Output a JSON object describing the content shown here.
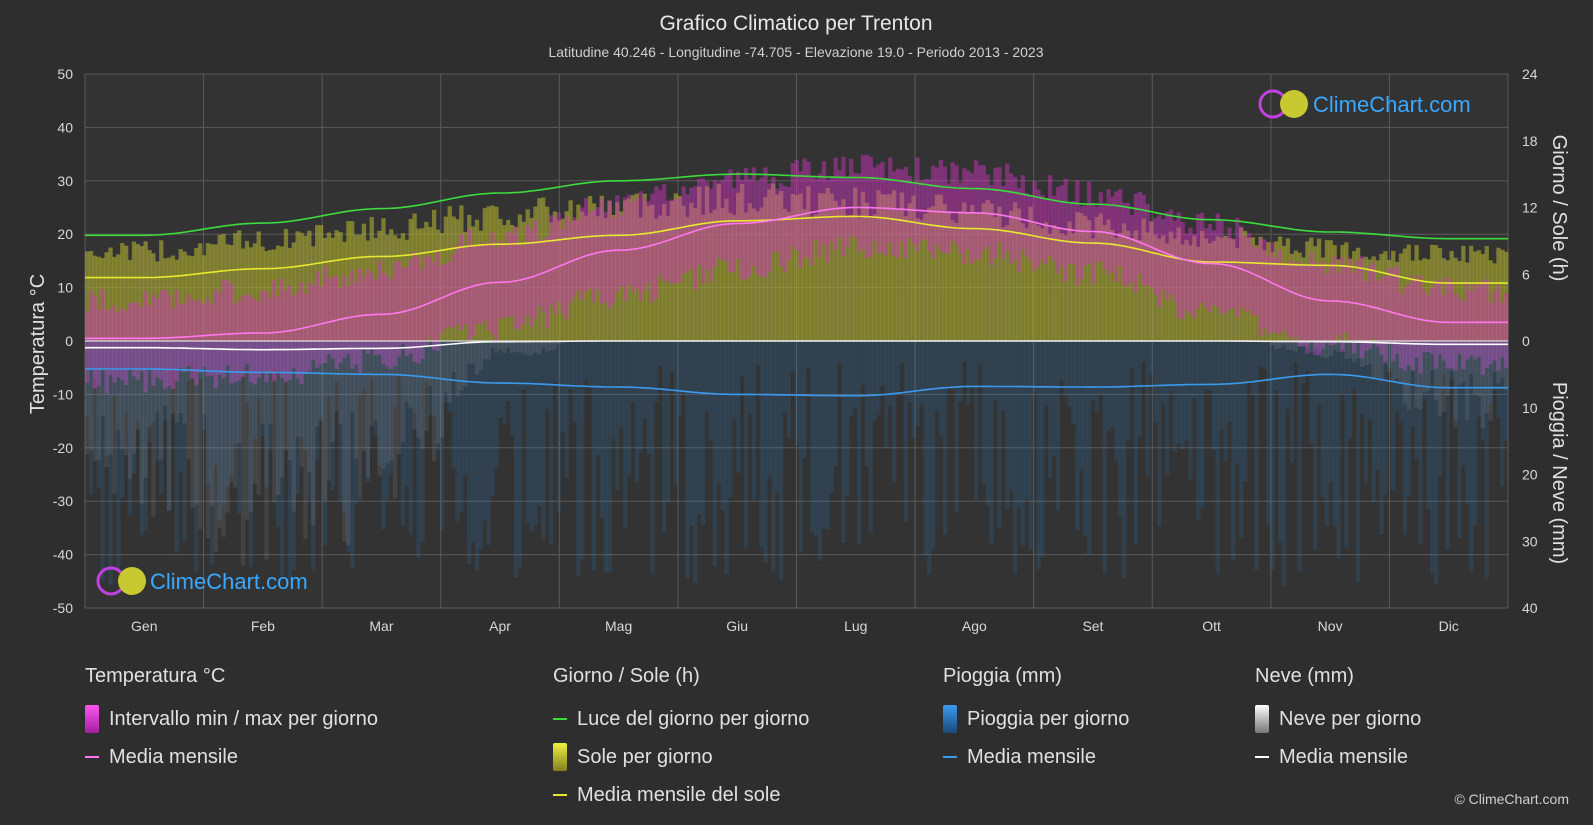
{
  "chart_data": {
    "type": "area",
    "title": "Grafico Climatico per Trenton",
    "subtitle": "Latitudine 40.246 - Longitudine -74.705 - Elevazione 19.0 - Periodo 2013 - 2023",
    "categories": [
      "Gen",
      "Feb",
      "Mar",
      "Apr",
      "Mag",
      "Giu",
      "Lug",
      "Ago",
      "Set",
      "Ott",
      "Nov",
      "Dic"
    ],
    "axes": {
      "left": {
        "label": "Temperatura °C",
        "range": [
          -50,
          50
        ],
        "ticks": [
          50,
          40,
          30,
          20,
          10,
          0,
          -10,
          -20,
          -30,
          -40,
          -50
        ]
      },
      "right_top": {
        "label": "Giorno / Sole (h)",
        "range": [
          0,
          24
        ],
        "ticks": [
          24,
          18,
          12,
          6,
          0
        ]
      },
      "right_bottom": {
        "label": "Pioggia / Neve (mm)",
        "range": [
          0,
          40
        ],
        "ticks": [
          0,
          10,
          20,
          30,
          40
        ]
      }
    },
    "series": [
      {
        "name": "Luce del giorno per giorno",
        "unit": "h",
        "values": [
          9.5,
          10.6,
          11.9,
          13.3,
          14.4,
          15.0,
          14.7,
          13.7,
          12.3,
          10.9,
          9.8,
          9.2
        ]
      },
      {
        "name": "Media mensile del sole",
        "unit": "h",
        "values": [
          5.7,
          6.5,
          7.6,
          8.7,
          9.5,
          10.8,
          11.2,
          10.1,
          8.8,
          7.1,
          6.8,
          5.2
        ]
      },
      {
        "name": "Media mensile",
        "group": "Temperatura °C",
        "unit": "°C",
        "values": [
          0.5,
          1.5,
          5.0,
          11.0,
          17.0,
          22.0,
          25.0,
          24.0,
          20.5,
          14.5,
          7.5,
          3.5
        ]
      },
      {
        "name": "Media mensile",
        "group": "Pioggia (mm)",
        "unit": "mm",
        "values": [
          4.2,
          4.7,
          5.0,
          6.3,
          6.9,
          8.0,
          8.2,
          6.8,
          6.9,
          6.5,
          5.0,
          7.0
        ]
      },
      {
        "name": "Media mensile",
        "group": "Neve (mm)",
        "unit": "mm",
        "values": [
          1.0,
          1.3,
          1.1,
          0.1,
          0.0,
          0.0,
          0.0,
          0.0,
          0.0,
          0.0,
          0.1,
          0.5
        ]
      },
      {
        "name": "Intervallo min / max per giorno",
        "group": "Temperatura °C",
        "unit": "°C",
        "min": [
          -5,
          -4,
          -1,
          5,
          11,
          16,
          20,
          19,
          15,
          8,
          2,
          -2
        ],
        "max": [
          5,
          7,
          11,
          17,
          23,
          28,
          30,
          29,
          25,
          19,
          12,
          7
        ]
      }
    ],
    "grid": true,
    "legend_position": "bottom",
    "colors": {
      "background": "#2e2e2e",
      "daylight": "#3ddc3d",
      "sun_fill": "#b8b832",
      "sun_mean": "#e8e832",
      "temp_range": "#d033c0",
      "temp_mean": "#ff77ee",
      "rain": "#2a7fc8",
      "rain_mean": "#3a9aee",
      "snow": "#aaaaaa",
      "snow_mean": "#ffffff",
      "grid": "#5a5a5a",
      "brand": "#3aa8ff"
    }
  },
  "watermark": {
    "text": "ClimeChart.com"
  },
  "legend": {
    "groups": [
      {
        "title": "Temperatura °C",
        "items": [
          {
            "label": "Intervallo min / max per giorno",
            "kind": "box",
            "color": "#e040d8"
          },
          {
            "label": "Media mensile",
            "kind": "line",
            "color": "#ff77ee"
          }
        ]
      },
      {
        "title": "Giorno / Sole (h)",
        "items": [
          {
            "label": "Luce del giorno per giorno",
            "kind": "line",
            "color": "#3ddc3d"
          },
          {
            "label": "Sole per giorno",
            "kind": "box",
            "color": "#d8d838"
          },
          {
            "label": "Media mensile del sole",
            "kind": "line",
            "color": "#e8e832"
          }
        ]
      },
      {
        "title": "Pioggia (mm)",
        "items": [
          {
            "label": "Pioggia per giorno",
            "kind": "box",
            "color": "#2a7fc8"
          },
          {
            "label": "Media mensile",
            "kind": "line",
            "color": "#3a9aee"
          }
        ]
      },
      {
        "title": "Neve (mm)",
        "items": [
          {
            "label": "Neve per giorno",
            "kind": "box",
            "color": "#dddddd"
          },
          {
            "label": "Media mensile",
            "kind": "line",
            "color": "#ffffff"
          }
        ]
      }
    ]
  },
  "copyright": "© ClimeChart.com"
}
